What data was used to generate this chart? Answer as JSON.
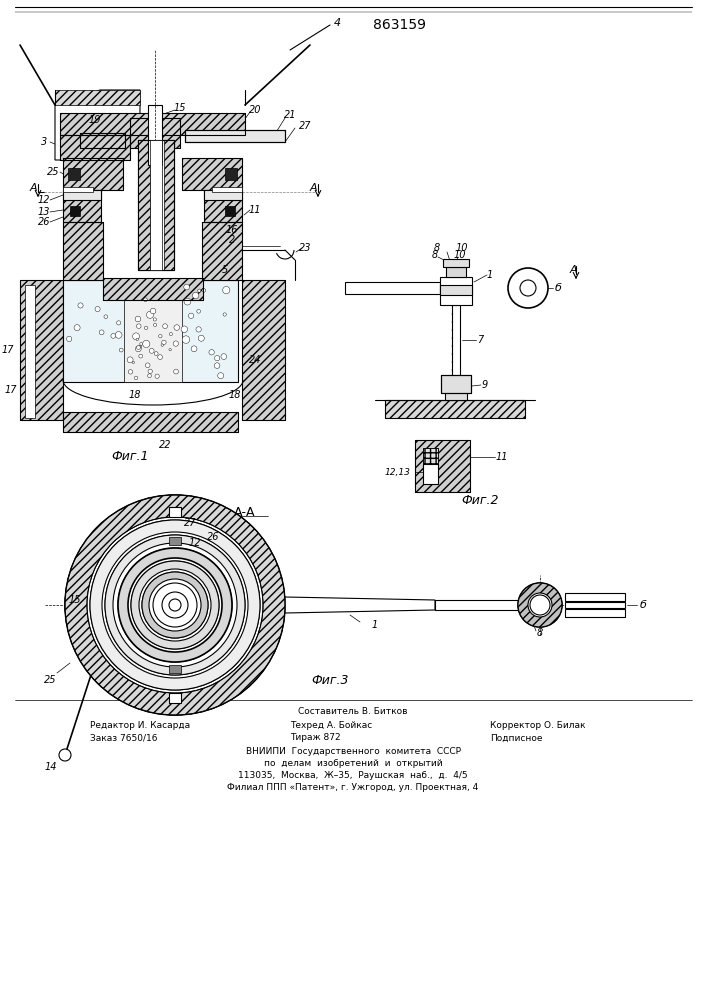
{
  "patent_number": "863159",
  "bg_color": "#ffffff",
  "line_color": "#000000",
  "fig1_label": "Фиг.1",
  "fig2_label": "Фиг.2",
  "fig3_label": "Фиг.3",
  "section_label": "А-А",
  "footer_line1": "Составитель В. Битков",
  "footer_line2_left": "Редактор И. Касарда",
  "footer_line2_mid": "Техред А. Бойкас",
  "footer_line2_right": "Корректор О. Билак",
  "footer_line3_left": "Заказ 7650/16",
  "footer_line3_mid": "Тираж 872",
  "footer_line3_right": "Подписное",
  "footer_line4": "ВНИИПИ  Государственного  комитета  СССР",
  "footer_line5": "по  делам  изобретений  и  открытий",
  "footer_line6": "113035,  Москва,  Ж–35,  Раушская  наб.,  д.  4/5",
  "footer_line7": "Филиал ППП «Патент», г. Ужгород, ул. Проектная, 4"
}
